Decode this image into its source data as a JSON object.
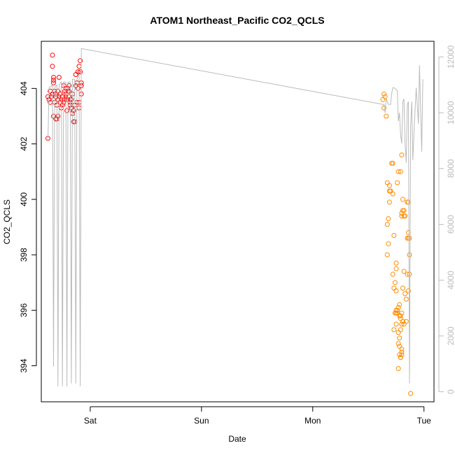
{
  "chart_data": {
    "type": "scatter",
    "title": "ATOM1 Northeast_Pacific CO2_QCLS",
    "xlabel": "Date",
    "ylabel": "CO2_QCLS",
    "x_unit": "day",
    "x_ticks": [
      {
        "label": "Sat",
        "value": 0
      },
      {
        "label": "Sun",
        "value": 1
      },
      {
        "label": "Mon",
        "value": 2
      },
      {
        "label": "Tue",
        "value": 3
      }
    ],
    "xlim": [
      -0.44,
      3.09
    ],
    "ylim": [
      392.7,
      405.7
    ],
    "y_ticks": [
      394,
      396,
      398,
      400,
      402,
      404
    ],
    "y2lim": [
      -360,
      12560
    ],
    "y2_ticks": [
      0,
      2000,
      4000,
      6000,
      8000,
      10000,
      12000
    ],
    "series": [
      {
        "name": "",
        "kind": "points",
        "color": "#ff0000",
        "points": [
          [
            -0.38,
            403.7
          ],
          [
            -0.37,
            403.6
          ],
          [
            -0.36,
            403.5
          ],
          [
            -0.38,
            402.2
          ],
          [
            -0.36,
            403.9
          ],
          [
            -0.35,
            403.7
          ],
          [
            -0.34,
            403.8
          ],
          [
            -0.34,
            405.2
          ],
          [
            -0.34,
            404.8
          ],
          [
            -0.33,
            404.3
          ],
          [
            -0.33,
            404.4
          ],
          [
            -0.33,
            404.2
          ],
          [
            -0.32,
            403.9
          ],
          [
            -0.32,
            403.5
          ],
          [
            -0.31,
            403.7
          ],
          [
            -0.31,
            403.8
          ],
          [
            -0.3,
            403.4
          ],
          [
            -0.3,
            402.9
          ],
          [
            -0.29,
            403.6
          ],
          [
            -0.29,
            403.9
          ],
          [
            -0.28,
            404.4
          ],
          [
            -0.28,
            403.7
          ],
          [
            -0.27,
            403.5
          ],
          [
            -0.27,
            403.8
          ],
          [
            -0.26,
            403.3
          ],
          [
            -0.26,
            403.6
          ],
          [
            -0.25,
            403.7
          ],
          [
            -0.25,
            403.4
          ],
          [
            -0.24,
            404.1
          ],
          [
            -0.24,
            403.5
          ],
          [
            -0.23,
            403.6
          ],
          [
            -0.23,
            403.9
          ],
          [
            -0.22,
            403.8
          ],
          [
            -0.22,
            403.7
          ],
          [
            -0.21,
            403.6
          ],
          [
            -0.21,
            403.2
          ],
          [
            -0.2,
            404.0
          ],
          [
            -0.2,
            403.9
          ],
          [
            -0.19,
            404.1
          ],
          [
            -0.19,
            403.7
          ],
          [
            -0.18,
            403.5
          ],
          [
            -0.18,
            403.4
          ],
          [
            -0.17,
            403.6
          ],
          [
            -0.17,
            403.3
          ],
          [
            -0.16,
            403.8
          ],
          [
            -0.16,
            403.1
          ],
          [
            -0.15,
            402.8
          ],
          [
            -0.15,
            403.2
          ],
          [
            -0.14,
            402.8
          ],
          [
            -0.14,
            403.4
          ],
          [
            -0.13,
            404.1
          ],
          [
            -0.13,
            404.5
          ],
          [
            -0.12,
            404.2
          ],
          [
            -0.12,
            403.5
          ],
          [
            -0.11,
            404.0
          ],
          [
            -0.11,
            404.6
          ],
          [
            -0.1,
            404.8
          ],
          [
            -0.1,
            403.5
          ],
          [
            -0.1,
            403.3
          ],
          [
            -0.09,
            404.6
          ],
          [
            -0.09,
            405.0
          ],
          [
            -0.08,
            404.2
          ],
          [
            -0.08,
            404.1
          ],
          [
            -0.08,
            403.8
          ],
          [
            -0.31,
            402.9
          ],
          [
            -0.33,
            403.0
          ],
          [
            -0.29,
            403.0
          ],
          [
            -0.27,
            403.8
          ],
          [
            -0.22,
            404.0
          ],
          [
            -0.19,
            403.9
          ],
          [
            -0.18,
            403.6
          ],
          [
            -0.15,
            403.2
          ]
        ]
      },
      {
        "name": "",
        "kind": "points",
        "color": "#ff8c00",
        "points": [
          [
            2.63,
            403.6
          ],
          [
            2.64,
            403.8
          ],
          [
            2.65,
            403.7
          ],
          [
            2.64,
            403.3
          ],
          [
            2.66,
            403.0
          ],
          [
            2.67,
            400.6
          ],
          [
            2.69,
            400.5
          ],
          [
            2.69,
            400.3
          ],
          [
            2.7,
            400.3
          ],
          [
            2.7,
            400.3
          ],
          [
            2.71,
            401.3
          ],
          [
            2.72,
            401.3
          ],
          [
            2.72,
            400.2
          ],
          [
            2.67,
            399.1
          ],
          [
            2.68,
            399.3
          ],
          [
            2.69,
            399.9
          ],
          [
            2.67,
            398.0
          ],
          [
            2.68,
            398.4
          ],
          [
            2.73,
            398.7
          ],
          [
            2.72,
            397.3
          ],
          [
            2.75,
            397.5
          ],
          [
            2.75,
            397.7
          ],
          [
            2.73,
            396.8
          ],
          [
            2.74,
            397.0
          ],
          [
            2.75,
            396.7
          ],
          [
            2.76,
            400.6
          ],
          [
            2.77,
            401.0
          ],
          [
            2.79,
            401.0
          ],
          [
            2.8,
            401.6
          ],
          [
            2.81,
            400.0
          ],
          [
            2.8,
            399.5
          ],
          [
            2.8,
            399.4
          ],
          [
            2.81,
            399.6
          ],
          [
            2.82,
            399.6
          ],
          [
            2.82,
            399.4
          ],
          [
            2.83,
            399.4
          ],
          [
            2.85,
            399.9
          ],
          [
            2.86,
            399.9
          ],
          [
            2.85,
            398.6
          ],
          [
            2.86,
            398.8
          ],
          [
            2.86,
            398.6
          ],
          [
            2.87,
            398.6
          ],
          [
            2.87,
            398.0
          ],
          [
            2.85,
            397.3
          ],
          [
            2.87,
            397.3
          ],
          [
            2.82,
            397.4
          ],
          [
            2.81,
            396.8
          ],
          [
            2.83,
            396.6
          ],
          [
            2.84,
            396.4
          ],
          [
            2.86,
            396.7
          ],
          [
            2.74,
            395.9
          ],
          [
            2.75,
            395.9
          ],
          [
            2.75,
            396.0
          ],
          [
            2.76,
            395.9
          ],
          [
            2.77,
            396.1
          ],
          [
            2.78,
            396.2
          ],
          [
            2.78,
            395.8
          ],
          [
            2.79,
            395.7
          ],
          [
            2.79,
            395.8
          ],
          [
            2.8,
            395.9
          ],
          [
            2.81,
            395.6
          ],
          [
            2.82,
            395.5
          ],
          [
            2.84,
            395.6
          ],
          [
            2.79,
            395.3
          ],
          [
            2.8,
            395.5
          ],
          [
            2.77,
            394.8
          ],
          [
            2.78,
            394.7
          ],
          [
            2.78,
            394.4
          ],
          [
            2.79,
            394.3
          ],
          [
            2.79,
            394.3
          ],
          [
            2.8,
            394.4
          ],
          [
            2.8,
            394.5
          ],
          [
            2.8,
            394.6
          ],
          [
            2.77,
            395.2
          ],
          [
            2.78,
            395.0
          ],
          [
            2.77,
            393.9
          ],
          [
            2.75,
            395.5
          ],
          [
            2.88,
            393.0
          ],
          [
            2.73,
            395.3
          ],
          [
            2.76,
            396.0
          ]
        ]
      },
      {
        "name": "",
        "kind": "line",
        "axis": "right",
        "color": "#bbbbbb",
        "points": [
          [
            -0.38,
            9000
          ],
          [
            -0.37,
            10900
          ],
          [
            -0.34,
            11000
          ],
          [
            -0.33,
            900
          ],
          [
            -0.32,
            10900
          ],
          [
            -0.3,
            11000
          ],
          [
            -0.29,
            200
          ],
          [
            -0.28,
            11000
          ],
          [
            -0.26,
            11100
          ],
          [
            -0.25,
            200
          ],
          [
            -0.24,
            11100
          ],
          [
            -0.22,
            11100
          ],
          [
            -0.21,
            200
          ],
          [
            -0.2,
            11100
          ],
          [
            -0.18,
            11100
          ],
          [
            -0.17,
            300
          ],
          [
            -0.16,
            11200
          ],
          [
            -0.14,
            11200
          ],
          [
            -0.13,
            300
          ],
          [
            -0.12,
            11200
          ],
          [
            -0.1,
            11400
          ],
          [
            -0.09,
            200
          ],
          [
            -0.08,
            12300
          ],
          [
            2.63,
            10300
          ],
          [
            2.64,
            10300
          ],
          [
            2.65,
            10000
          ],
          [
            2.66,
            10500
          ],
          [
            2.67,
            10400
          ],
          [
            2.68,
            10300
          ],
          [
            2.7,
            10300
          ],
          [
            2.71,
            10700
          ],
          [
            2.72,
            10900
          ],
          [
            2.73,
            10900
          ],
          [
            2.76,
            10800
          ],
          [
            2.77,
            9700
          ],
          [
            2.78,
            10000
          ],
          [
            2.79,
            9200
          ],
          [
            2.8,
            8900
          ],
          [
            2.81,
            10400
          ],
          [
            2.82,
            10500
          ],
          [
            2.83,
            8900
          ],
          [
            2.84,
            8200
          ],
          [
            2.85,
            10300
          ],
          [
            2.86,
            10400
          ],
          [
            2.87,
            300
          ],
          [
            2.88,
            9500
          ],
          [
            2.89,
            10400
          ],
          [
            2.9,
            8300
          ],
          [
            2.91,
            9300
          ],
          [
            2.93,
            10900
          ],
          [
            2.95,
            9600
          ],
          [
            2.96,
            11700
          ],
          [
            2.98,
            8600
          ],
          [
            2.99,
            11200
          ]
        ]
      }
    ]
  }
}
